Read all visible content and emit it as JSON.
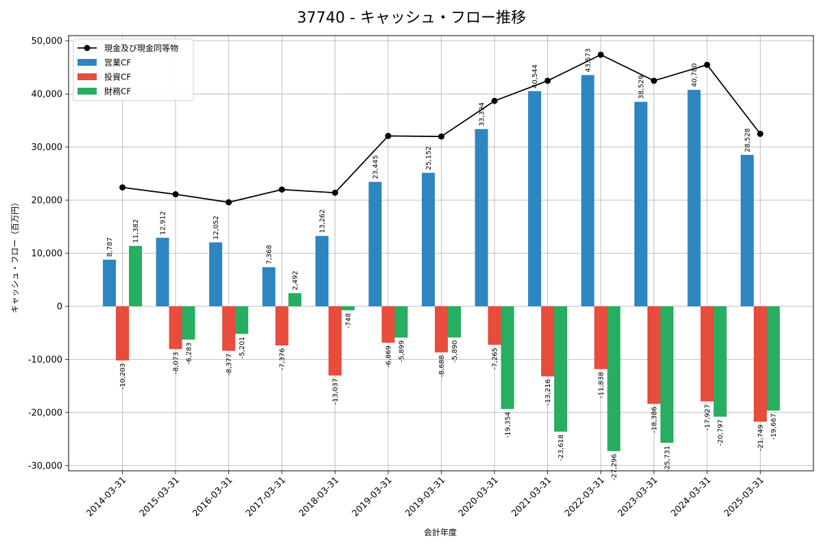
{
  "chart_data": {
    "type": "bar",
    "title": "37740 - キャッシュ・フロー推移",
    "xlabel": "会計年度",
    "ylabel": "キャッシュ・フロー（百万円）",
    "ylim": [
      -31000,
      51000
    ],
    "y_ticks": [
      -30000,
      -20000,
      -10000,
      0,
      10000,
      20000,
      30000,
      40000,
      50000
    ],
    "y_tick_labels": [
      "-30,000",
      "-20,000",
      "-10,000",
      "0",
      "10,000",
      "20,000",
      "30,000",
      "40,000",
      "50,000"
    ],
    "grid": true,
    "legend_position": "top-left",
    "categories": [
      "2014-03-31",
      "2015-03-31",
      "2016-03-31",
      "2017-03-31",
      "2018-03-31",
      "2019-03-31",
      "2019-03-31",
      "2020-03-31",
      "2021-03-31",
      "2022-03-31",
      "2023-03-31",
      "2024-03-31",
      "2025-03-31"
    ],
    "series": [
      {
        "name": "営業CF",
        "kind": "bar",
        "color": "#2e86c1",
        "values": [
          8787,
          12912,
          12052,
          7368,
          13262,
          23445,
          25152,
          33394,
          40544,
          43573,
          38529,
          40780,
          28528
        ],
        "labels": [
          "8,787",
          "12,912",
          "12,052",
          "7,368",
          "13,262",
          "23,445",
          "25,152",
          "33,394",
          "40,544",
          "43,573",
          "38,529",
          "40,780",
          "28,528"
        ]
      },
      {
        "name": "投資CF",
        "kind": "bar",
        "color": "#e74c3c",
        "values": [
          -10203,
          -8073,
          -8377,
          -7376,
          -13037,
          -6869,
          -8688,
          -7265,
          -13216,
          -11838,
          -18386,
          -17927,
          -21749
        ],
        "labels": [
          "-10,203",
          "-8,073",
          "-8,377",
          "-7,376",
          "-13,037",
          "-6,869",
          "-8,688",
          "-7,265",
          "-13,216",
          "-11,838",
          "-18,386",
          "-17,927",
          "-21,749"
        ]
      },
      {
        "name": "財務CF",
        "kind": "bar",
        "color": "#27ae60",
        "values": [
          11382,
          -6283,
          -5201,
          2492,
          -748,
          -5899,
          -5890,
          -19354,
          -23618,
          -27296,
          -25731,
          -20797,
          -19667
        ],
        "labels": [
          "11,382",
          "-6,283",
          "-5,201",
          "2,492",
          "-748",
          "-5,899",
          "-5,890",
          "-19,354",
          "-23,618",
          "-27,296",
          "-25,731",
          "-20,797",
          "-19,667"
        ]
      },
      {
        "name": "現金及び現金同等物",
        "kind": "line",
        "color": "#000000",
        "values": [
          22400,
          21100,
          19600,
          22000,
          21400,
          32100,
          32000,
          38700,
          42500,
          47400,
          42500,
          45500,
          32500
        ]
      }
    ]
  }
}
